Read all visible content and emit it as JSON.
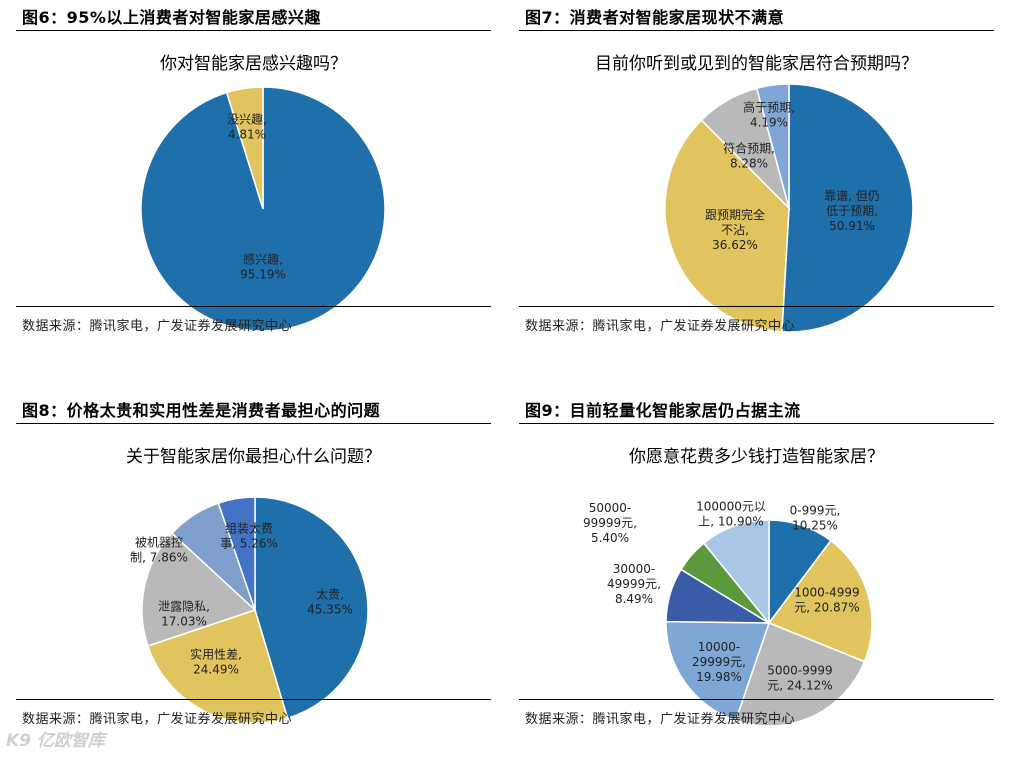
{
  "figures": [
    {
      "title": "图6：95%以上消费者对智能家居感兴趣",
      "source": "数据来源：腾讯家电，广发证券发展研究中心"
    },
    {
      "title": "图7：消费者对智能家居现状不满意",
      "source": "数据来源：腾讯家电，广发证券发展研究中心"
    },
    {
      "title": "图8：价格太贵和实用性差是消费者最担心的问题",
      "source": "数据来源：腾讯家电，广发证券发展研究中心"
    },
    {
      "title": "图9：目前轻量化智能家居仍占据主流",
      "source": "数据来源：腾讯家电，广发证券发展研究中心"
    }
  ],
  "watermark": "K9 亿欧智库",
  "chart_data": [
    {
      "type": "pie",
      "title": "你对智能家居感兴趣吗？",
      "start_angle_deg": 0,
      "slices": [
        {
          "name": "感兴趣",
          "value": 95.19,
          "label_lines": [
            "感兴趣,",
            "95.19%"
          ],
          "color": "#1f6fab"
        },
        {
          "name": "没兴趣",
          "value": 4.81,
          "label_lines": [
            "没兴趣,",
            "4.81%"
          ],
          "color": "#e2c45e"
        }
      ]
    },
    {
      "type": "pie",
      "title": "目前你听到或见到的智能家居符合预期吗？",
      "start_angle_deg": 0,
      "slices": [
        {
          "name": "靠谱，但仍低于预期",
          "value": 50.91,
          "label_lines": [
            "靠谱, 但仍",
            "低于预期,",
            "50.91%"
          ],
          "color": "#1f6fab"
        },
        {
          "name": "跟预期完全不沾",
          "value": 36.62,
          "label_lines": [
            "跟预期完全",
            "不沾,",
            "36.62%"
          ],
          "color": "#e2c45e"
        },
        {
          "name": "符合预期",
          "value": 8.28,
          "label_lines": [
            "符合预期,",
            "8.28%"
          ],
          "color": "#b9b9b9"
        },
        {
          "name": "高于预期",
          "value": 4.19,
          "label_lines": [
            "高于预期,",
            "4.19%"
          ],
          "color": "#7fa7d6"
        }
      ]
    },
    {
      "type": "pie",
      "title": "关于智能家居你最担心什么问题？",
      "start_angle_deg": 0,
      "slices": [
        {
          "name": "太贵",
          "value": 45.35,
          "label_lines": [
            "太贵,",
            "45.35%"
          ],
          "color": "#1f6fab"
        },
        {
          "name": "实用性差",
          "value": 24.49,
          "label_lines": [
            "实用性差,",
            "24.49%"
          ],
          "color": "#e2c45e"
        },
        {
          "name": "泄露隐私",
          "value": 17.03,
          "label_lines": [
            "泄露隐私,",
            "17.03%"
          ],
          "color": "#b9b9b9"
        },
        {
          "name": "被机器控制",
          "value": 7.86,
          "label_lines": [
            "被机器控",
            "制, 7.86%"
          ],
          "color": "#7fa0cc"
        },
        {
          "name": "组装太费事",
          "value": 5.26,
          "label_lines": [
            "组装太费",
            "事, 5.26%"
          ],
          "color": "#4472c4"
        }
      ]
    },
    {
      "type": "pie",
      "title": "你愿意花费多少钱打造智能家居？",
      "start_angle_deg": 0,
      "slices": [
        {
          "name": "0-999元",
          "value": 10.25,
          "label_lines": [
            "0-999元,",
            "10.25%"
          ],
          "color": "#1f6fab"
        },
        {
          "name": "1000-4999元",
          "value": 20.87,
          "label_lines": [
            "1000-4999",
            "元, 20.87%"
          ],
          "color": "#e2c45e"
        },
        {
          "name": "5000-9999元",
          "value": 24.12,
          "label_lines": [
            "5000-9999",
            "元, 24.12%"
          ],
          "color": "#b9b9b9"
        },
        {
          "name": "10000-29999元",
          "value": 19.98,
          "label_lines": [
            "10000-",
            "29999元,",
            "19.98%"
          ],
          "color": "#7fa7d6"
        },
        {
          "name": "30000-49999元",
          "value": 8.49,
          "label_lines": [
            "30000-",
            "49999元,",
            "8.49%"
          ],
          "color": "#3a5ba8"
        },
        {
          "name": "50000-99999元",
          "value": 5.4,
          "label_lines": [
            "50000-",
            "99999元,",
            "5.40%"
          ],
          "color": "#5a9a3c"
        },
        {
          "name": "100000元以上",
          "value": 10.9,
          "label_lines": [
            "100000元以",
            "上, 10.90%"
          ],
          "color": "#a8c6e6"
        }
      ]
    }
  ]
}
